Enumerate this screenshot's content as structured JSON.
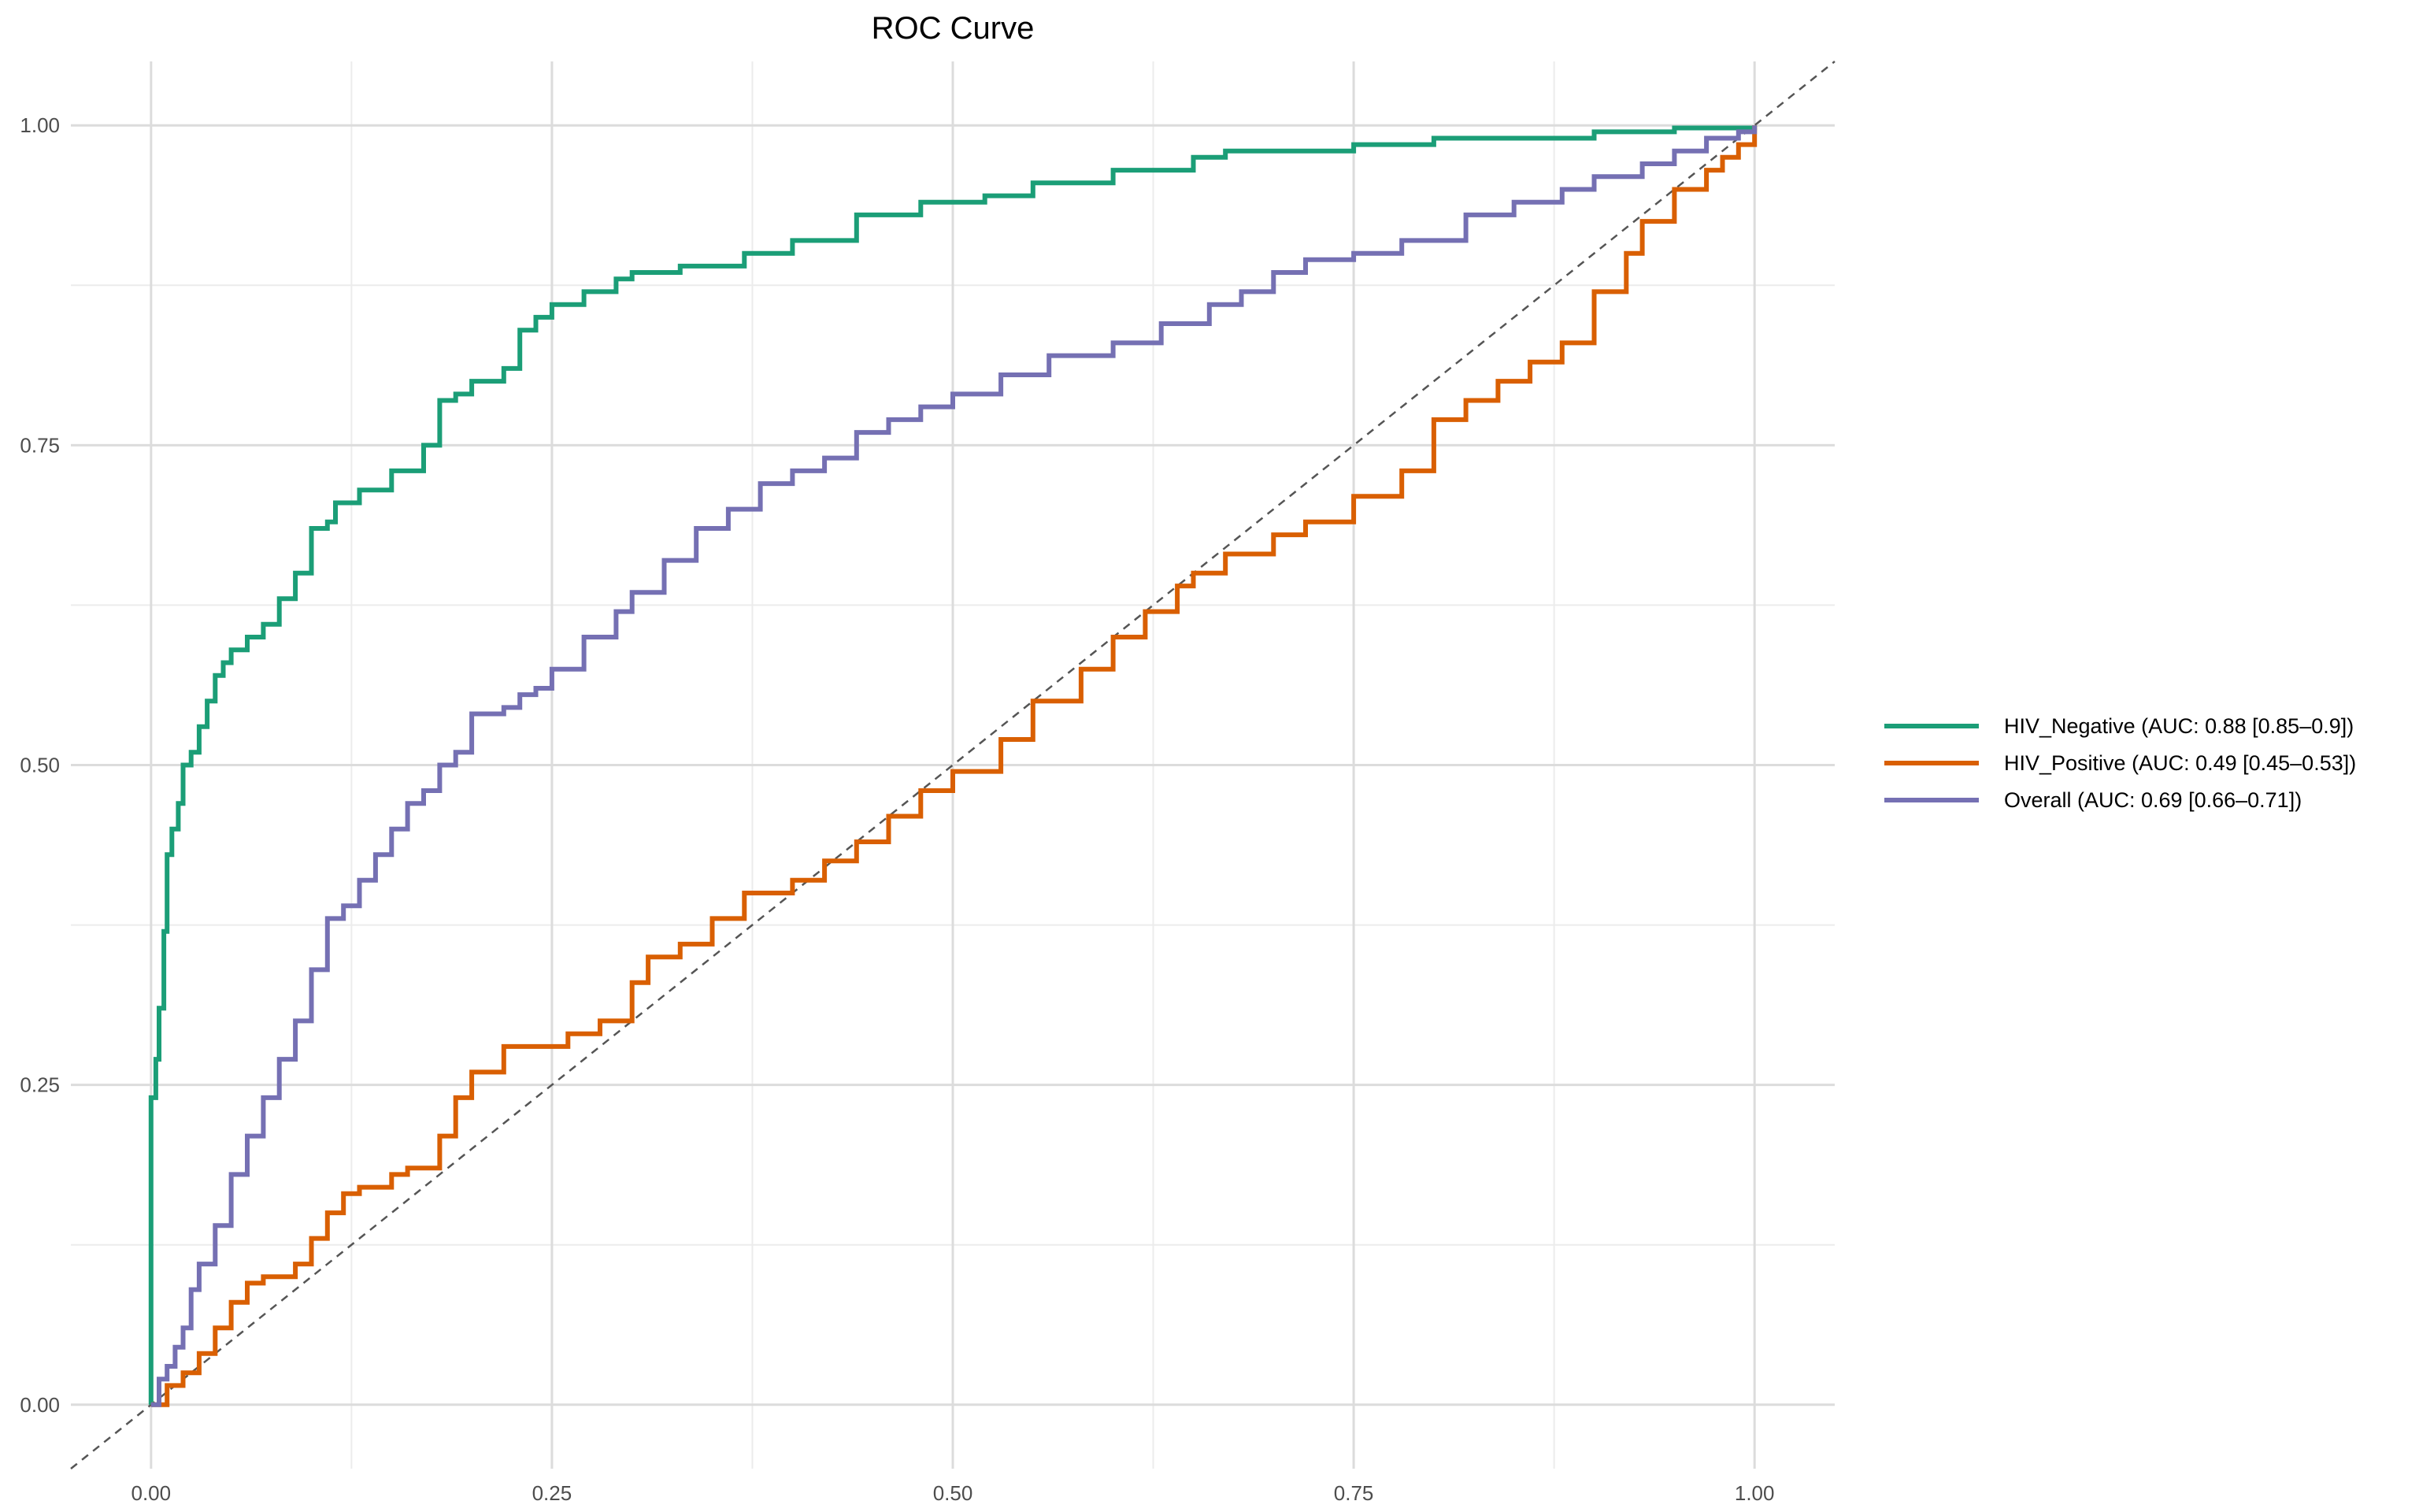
{
  "chart_data": {
    "type": "line",
    "title": "ROC Curve",
    "xlabel": "",
    "ylabel": "",
    "xlim": [
      -0.05,
      1.05
    ],
    "ylim": [
      -0.05,
      1.05
    ],
    "grid": true,
    "legend_position": "right",
    "x_ticks": [
      0,
      0.25,
      0.5,
      0.75,
      1
    ],
    "y_ticks": [
      0,
      0.25,
      0.5,
      0.75,
      1
    ],
    "x_tick_labels": [
      "0.00",
      "0.25",
      "0.50",
      "0.75",
      "1.00"
    ],
    "y_tick_labels": [
      "0.00",
      "0.25",
      "0.50",
      "0.75",
      "1.00"
    ],
    "reference_line": {
      "x": [
        -0.05,
        1.05
      ],
      "y": [
        -0.05,
        1.05
      ],
      "style": "dashed",
      "color": "#555555"
    },
    "series": [
      {
        "name": "HIV_Negative (AUC: 0.88 [0.85–0.9])",
        "color": "#1b9e77",
        "x": [
          0,
          0,
          0.003,
          0.005,
          0.008,
          0.01,
          0.013,
          0.017,
          0.02,
          0.025,
          0.03,
          0.035,
          0.04,
          0.045,
          0.05,
          0.055,
          0.06,
          0.07,
          0.08,
          0.09,
          0.1,
          0.11,
          0.115,
          0.13,
          0.15,
          0.17,
          0.18,
          0.19,
          0.2,
          0.22,
          0.23,
          0.24,
          0.25,
          0.27,
          0.29,
          0.3,
          0.33,
          0.37,
          0.4,
          0.44,
          0.48,
          0.52,
          0.55,
          0.6,
          0.65,
          0.67,
          0.75,
          0.8,
          0.85,
          0.9,
          0.95,
          1.0
        ],
        "y": [
          0,
          0.24,
          0.27,
          0.31,
          0.37,
          0.43,
          0.45,
          0.47,
          0.5,
          0.51,
          0.53,
          0.55,
          0.57,
          0.58,
          0.59,
          0.59,
          0.6,
          0.61,
          0.63,
          0.65,
          0.685,
          0.69,
          0.705,
          0.715,
          0.73,
          0.75,
          0.785,
          0.79,
          0.8,
          0.81,
          0.84,
          0.85,
          0.86,
          0.87,
          0.88,
          0.885,
          0.89,
          0.9,
          0.91,
          0.93,
          0.94,
          0.945,
          0.955,
          0.965,
          0.975,
          0.98,
          0.985,
          0.99,
          0.99,
          0.995,
          0.998,
          1.0
        ]
      },
      {
        "name": "HIV_Positive (AUC: 0.49 [0.45–0.53])",
        "color": "#d95f02",
        "x": [
          0,
          0.01,
          0.02,
          0.03,
          0.04,
          0.05,
          0.06,
          0.07,
          0.08,
          0.09,
          0.1,
          0.11,
          0.12,
          0.13,
          0.15,
          0.16,
          0.18,
          0.19,
          0.2,
          0.22,
          0.24,
          0.26,
          0.28,
          0.3,
          0.31,
          0.33,
          0.35,
          0.37,
          0.4,
          0.42,
          0.44,
          0.46,
          0.48,
          0.5,
          0.53,
          0.55,
          0.58,
          0.6,
          0.62,
          0.64,
          0.65,
          0.67,
          0.7,
          0.72,
          0.75,
          0.78,
          0.8,
          0.82,
          0.84,
          0.86,
          0.88,
          0.9,
          0.92,
          0.93,
          0.95,
          0.97,
          0.98,
          0.99,
          1.0
        ],
        "y": [
          0,
          0.015,
          0.025,
          0.04,
          0.06,
          0.08,
          0.095,
          0.1,
          0.1,
          0.11,
          0.13,
          0.15,
          0.165,
          0.17,
          0.18,
          0.185,
          0.21,
          0.24,
          0.26,
          0.28,
          0.28,
          0.29,
          0.3,
          0.33,
          0.35,
          0.36,
          0.38,
          0.4,
          0.41,
          0.425,
          0.44,
          0.46,
          0.48,
          0.495,
          0.52,
          0.55,
          0.575,
          0.6,
          0.62,
          0.64,
          0.65,
          0.665,
          0.68,
          0.69,
          0.71,
          0.73,
          0.77,
          0.785,
          0.8,
          0.815,
          0.83,
          0.87,
          0.9,
          0.925,
          0.95,
          0.965,
          0.975,
          0.985,
          1.0
        ]
      },
      {
        "name": "Overall (AUC: 0.69 [0.66–0.71])",
        "color": "#7570b3",
        "x": [
          0,
          0.005,
          0.01,
          0.015,
          0.02,
          0.025,
          0.03,
          0.04,
          0.05,
          0.06,
          0.07,
          0.08,
          0.09,
          0.1,
          0.11,
          0.12,
          0.13,
          0.14,
          0.15,
          0.16,
          0.17,
          0.18,
          0.19,
          0.2,
          0.22,
          0.23,
          0.24,
          0.25,
          0.27,
          0.29,
          0.3,
          0.32,
          0.34,
          0.36,
          0.38,
          0.4,
          0.42,
          0.44,
          0.46,
          0.48,
          0.5,
          0.53,
          0.56,
          0.6,
          0.63,
          0.66,
          0.68,
          0.7,
          0.72,
          0.75,
          0.78,
          0.82,
          0.85,
          0.88,
          0.9,
          0.93,
          0.95,
          0.97,
          0.99,
          1.0
        ],
        "y": [
          0,
          0.02,
          0.03,
          0.045,
          0.06,
          0.09,
          0.11,
          0.14,
          0.18,
          0.21,
          0.24,
          0.27,
          0.3,
          0.34,
          0.38,
          0.39,
          0.41,
          0.43,
          0.45,
          0.47,
          0.48,
          0.5,
          0.51,
          0.54,
          0.545,
          0.555,
          0.56,
          0.575,
          0.6,
          0.62,
          0.635,
          0.66,
          0.685,
          0.7,
          0.72,
          0.73,
          0.74,
          0.76,
          0.77,
          0.78,
          0.79,
          0.805,
          0.82,
          0.83,
          0.845,
          0.86,
          0.87,
          0.885,
          0.895,
          0.9,
          0.91,
          0.93,
          0.94,
          0.95,
          0.96,
          0.97,
          0.98,
          0.99,
          0.995,
          1.0
        ]
      }
    ]
  }
}
